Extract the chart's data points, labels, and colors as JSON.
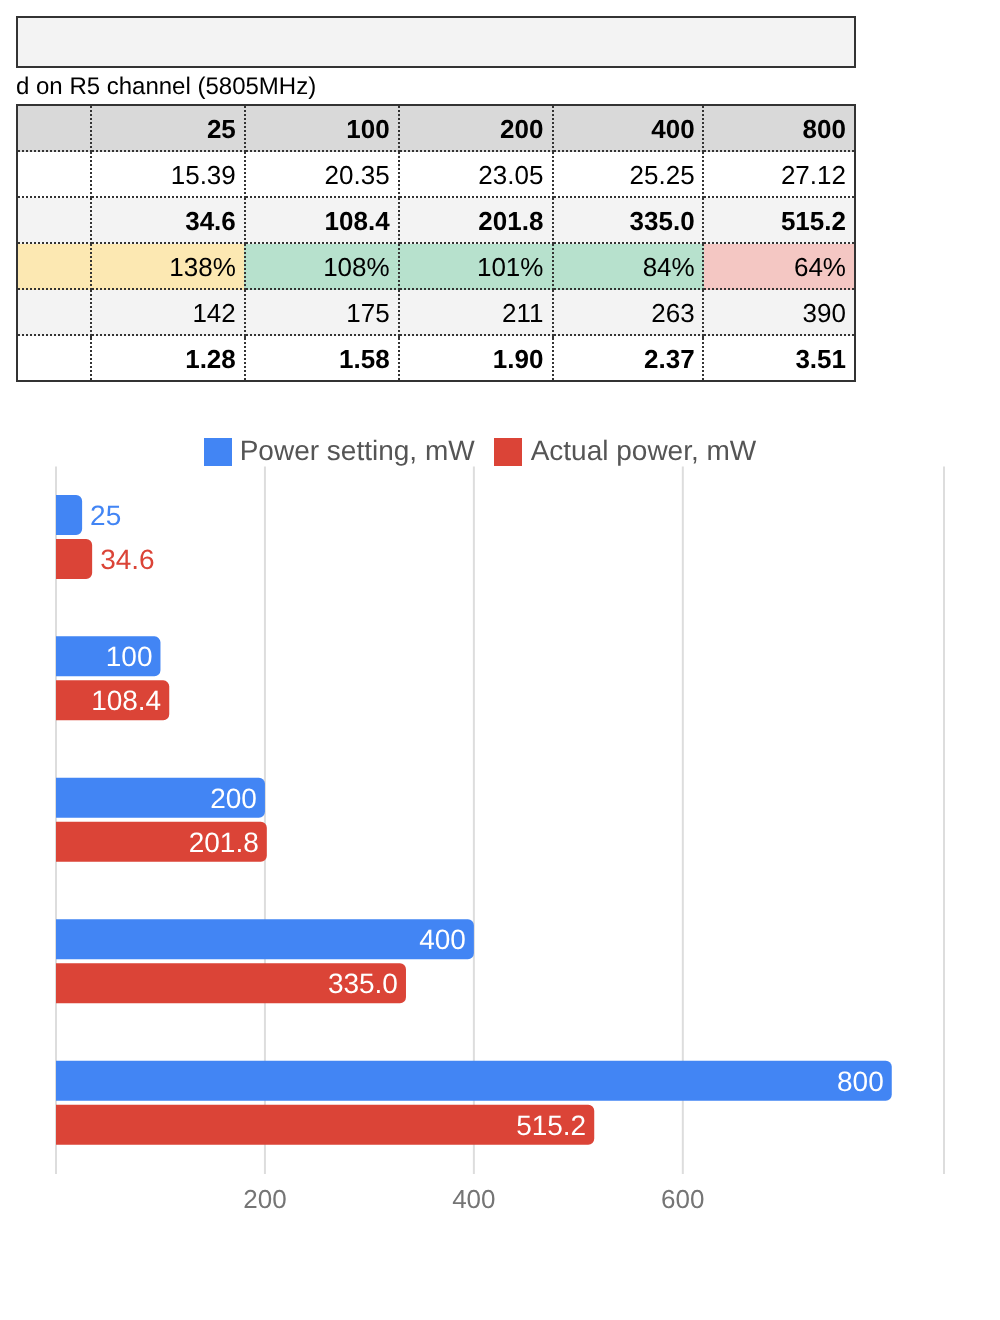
{
  "chart_data": [
    {
      "type": "other",
      "subtitle": "d on R5 channel (5805MHz)",
      "categories": [
        "25",
        "100",
        "200",
        "400",
        "800"
      ],
      "series": [
        {
          "values": [
            15.39,
            20.35,
            23.05,
            25.25,
            27.12
          ],
          "value_labels": [
            "15.39",
            "20.35",
            "23.05",
            "25.25",
            "27.12"
          ]
        },
        {
          "values": [
            34.6,
            108.4,
            201.8,
            335.0,
            515.2
          ],
          "value_labels": [
            "34.6",
            "108.4",
            "201.8",
            "335.0",
            "515.2"
          ]
        },
        {
          "values": [
            138,
            108,
            101,
            84,
            64
          ],
          "value_labels": [
            "138%",
            "108%",
            "101%",
            "84%",
            "64%"
          ],
          "colors": [
            "#fce8b2",
            "#b7e1cd",
            "#b7e1cd",
            "#b7e1cd",
            "#f4c7c3"
          ]
        },
        {
          "values": [
            142,
            175,
            211,
            263,
            390
          ],
          "value_labels": [
            "142",
            "175",
            "211",
            "263",
            "390"
          ]
        },
        {
          "values": [
            1.28,
            1.58,
            1.9,
            2.37,
            3.51
          ],
          "value_labels": [
            "1.28",
            "1.58",
            "1.90",
            "2.37",
            "3.51"
          ]
        }
      ]
    },
    {
      "type": "bar",
      "orientation": "horizontal",
      "categories": [
        null,
        null,
        null,
        null,
        null
      ],
      "series": [
        {
          "name": "Power setting, mW",
          "color": "#4285f4",
          "values": [
            25,
            100,
            200,
            400,
            800
          ],
          "value_labels": [
            "25",
            "100",
            "200",
            "400",
            "800"
          ]
        },
        {
          "name": "Actual power, mW",
          "color": "#db4437",
          "values": [
            34.6,
            108.4,
            201.8,
            335.0,
            515.2
          ],
          "value_labels": [
            "34.6",
            "108.4",
            "201.8",
            "335.0",
            "515.2"
          ]
        }
      ],
      "xlim": [
        0,
        850
      ],
      "xticks": [
        200,
        400,
        600
      ],
      "grid": "x",
      "legend": "top"
    }
  ]
}
